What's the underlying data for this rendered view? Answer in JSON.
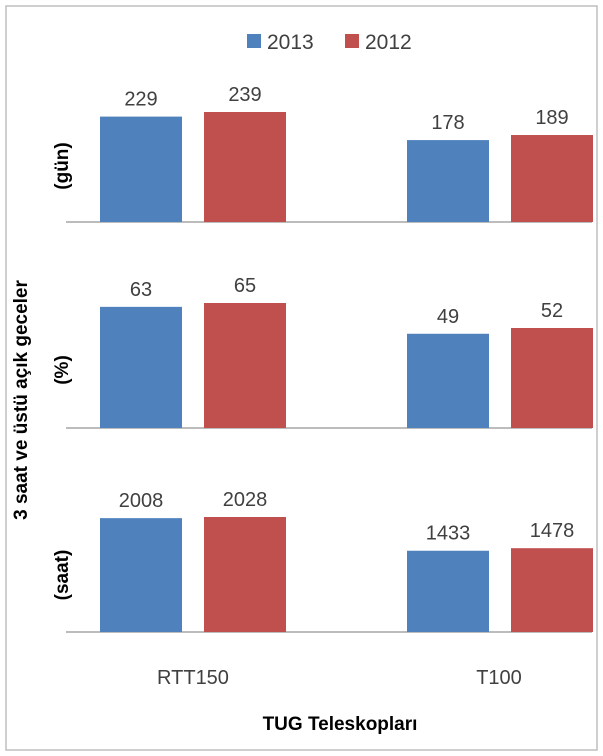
{
  "chart_data": {
    "type": "bar",
    "xlabel": "TUG Teleskopları",
    "ylabel": "3 saat ve üstü açık geceler",
    "categories": [
      "RTT150",
      "T100"
    ],
    "legend": {
      "position": "top",
      "entries": [
        {
          "name": "2013",
          "color": "#4f81bd"
        },
        {
          "name": "2012",
          "color": "#c0504d"
        }
      ]
    },
    "grid": false,
    "panels": [
      {
        "ylabel": "(gün)",
        "series": [
          {
            "name": "2013",
            "color": "#4f81bd",
            "values": [
              229,
              178
            ]
          },
          {
            "name": "2012",
            "color": "#c0504d",
            "values": [
              239,
              189
            ]
          }
        ]
      },
      {
        "ylabel": "(%)",
        "series": [
          {
            "name": "2013",
            "color": "#4f81bd",
            "values": [
              63,
              49
            ]
          },
          {
            "name": "2012",
            "color": "#c0504d",
            "values": [
              65,
              52
            ]
          }
        ]
      },
      {
        "ylabel": "(saat)",
        "series": [
          {
            "name": "2013",
            "color": "#4f81bd",
            "values": [
              2008,
              1433
            ]
          },
          {
            "name": "2012",
            "color": "#c0504d",
            "values": [
              2028,
              1478
            ]
          }
        ]
      }
    ]
  }
}
